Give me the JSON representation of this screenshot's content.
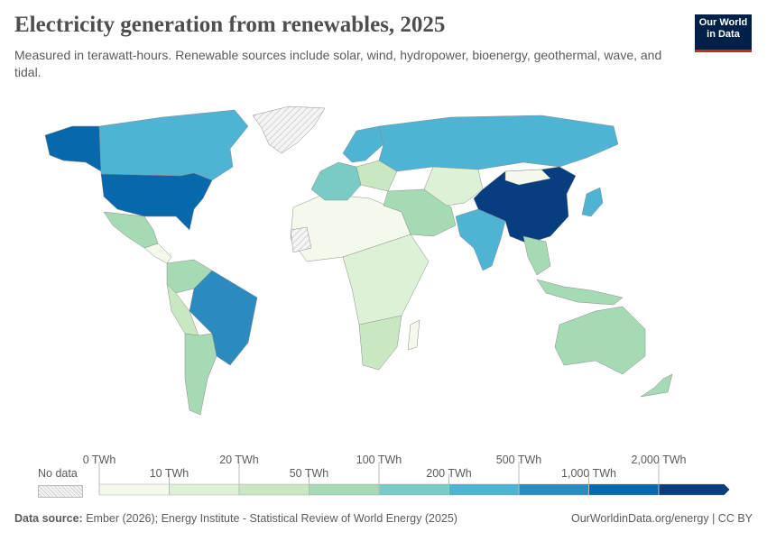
{
  "header": {
    "title": "Electricity generation from renewables, 2025",
    "subtitle": "Measured in terawatt-hours. Renewable sources include solar, wind, hydropower, bioenergy, geothermal, wave, and tidal.",
    "logo_text": "Our World in Data"
  },
  "legend": {
    "no_data_label": "No data",
    "top_labels": [
      "0 TWh",
      "20 TWh",
      "100 TWh",
      "500 TWh",
      "2,000 TWh"
    ],
    "bottom_labels": [
      "10 TWh",
      "50 TWh",
      "200 TWh",
      "1,000 TWh"
    ],
    "bins": [
      0,
      10,
      20,
      50,
      100,
      200,
      500,
      1000,
      2000
    ],
    "colors": [
      "#f3faec",
      "#ddf1d7",
      "#c9e8c2",
      "#a6dab5",
      "#7acbc5",
      "#4fb3d3",
      "#2b8bbe",
      "#0868ac",
      "#083e80"
    ]
  },
  "colors": {
    "no_data": "#e8e8e8",
    "border": "#9a9a9a"
  },
  "footer": {
    "source_label": "Data source:",
    "source_text": " Ember (2026); Energy Institute - Statistical Review of World Energy (2025)",
    "right": "OurWorldinData.org/energy | CC BY"
  }
}
